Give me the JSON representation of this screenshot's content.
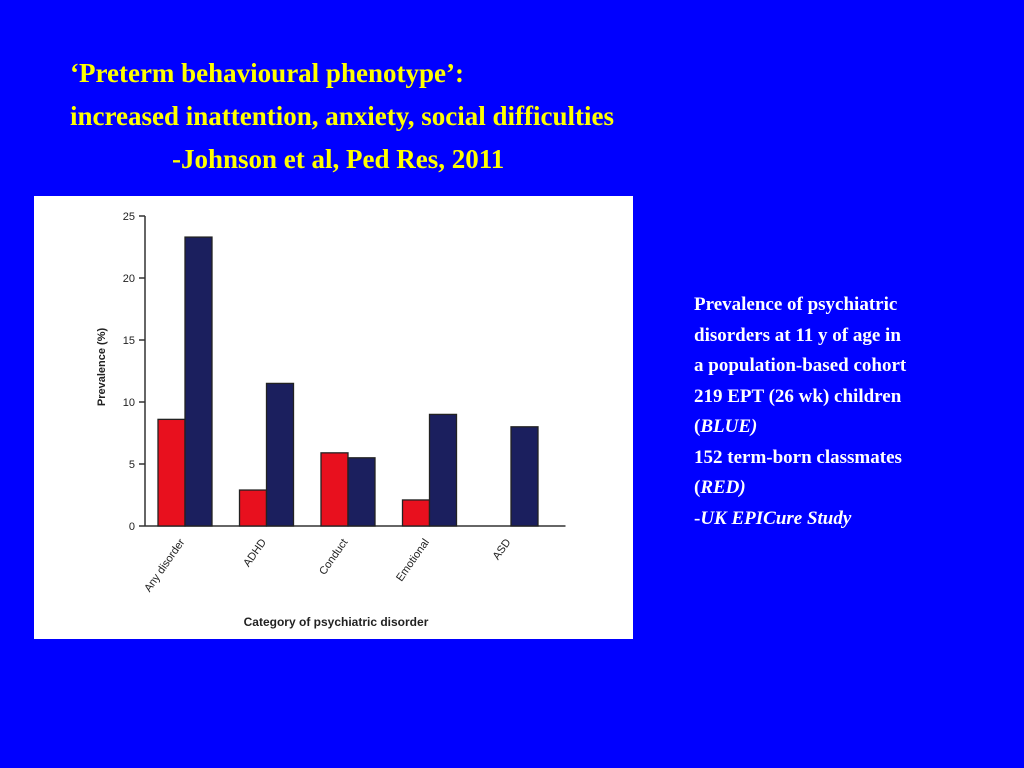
{
  "slide": {
    "background": "#0000FF",
    "title_color": "#FFFF00",
    "title_lines": [
      "‘Preterm behavioural phenotype’:",
      "increased inattention, anxiety, social difficulties",
      "-Johnson et al, Ped Res, 2011"
    ],
    "side": {
      "line1": "Prevalence of psychiatric",
      "line2": "disorders at 11 y of age in",
      "line3": "a population-based cohort",
      "line4": "219 EPT (26 wk) children",
      "blue_open": "(",
      "blue_italic": "BLUE)",
      "line6": "152 term-born classmates",
      "red_open": "(",
      "red_italic": "RED)",
      "study_dash": "-",
      "study_italic": "UK EPICure Study"
    }
  },
  "chart_data": {
    "type": "bar",
    "categories": [
      "Any disorder",
      "ADHD",
      "Conduct",
      "Emotional",
      "ASD"
    ],
    "series": [
      {
        "color": "#E8101E",
        "values": [
          8.6,
          2.9,
          5.9,
          2.1,
          0
        ]
      },
      {
        "color": "#1B1F5E",
        "values": [
          23.3,
          11.5,
          5.5,
          9.0,
          8.0
        ]
      }
    ],
    "xlabel": "Category of psychiatric disorder",
    "ylabel": "Prevalence (%)",
    "ylim": [
      0,
      25
    ],
    "yticks": [
      "0",
      "5",
      "10",
      "15",
      "20",
      "25"
    ],
    "grid": false
  }
}
